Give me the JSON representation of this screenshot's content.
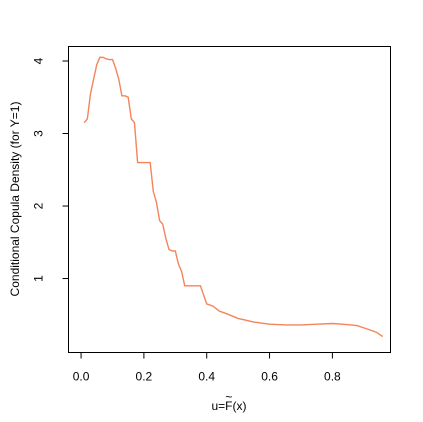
{
  "chart_data": {
    "type": "line",
    "title": "",
    "xlabel": "u=F(x)",
    "xlabel_prefix": "u=",
    "xlabel_symbol": "F",
    "xlabel_accent": "~",
    "xlabel_suffix": "(x)",
    "ylabel": "Conditional Copula Density (for Y=1)",
    "xlim": [
      -0.04,
      0.985
    ],
    "ylim": [
      -0.02,
      4.2
    ],
    "xticks": [
      0.0,
      0.2,
      0.4,
      0.6,
      0.8
    ],
    "xtick_labels": [
      "0.0",
      "0.2",
      "0.4",
      "0.6",
      "0.8"
    ],
    "yticks": [
      1,
      2,
      3,
      4
    ],
    "ytick_labels": [
      "1",
      "2",
      "3",
      "4"
    ],
    "grid": false,
    "legend": "none",
    "line_color": "#f4845a",
    "series": [
      {
        "x": [
          0.01,
          0.02,
          0.03,
          0.04,
          0.05,
          0.06,
          0.07,
          0.08,
          0.09,
          0.1,
          0.11,
          0.12,
          0.13,
          0.14,
          0.15,
          0.16,
          0.17,
          0.18,
          0.19,
          0.2,
          0.21,
          0.22,
          0.23,
          0.24,
          0.25,
          0.26,
          0.27,
          0.28,
          0.29,
          0.3,
          0.31,
          0.32,
          0.33,
          0.34,
          0.36,
          0.38,
          0.4,
          0.42,
          0.44,
          0.46,
          0.5,
          0.55,
          0.6,
          0.65,
          0.7,
          0.75,
          0.8,
          0.83,
          0.86,
          0.88,
          0.9,
          0.92,
          0.94,
          0.96
        ],
        "y": [
          3.15,
          3.2,
          3.55,
          3.75,
          3.95,
          4.05,
          4.05,
          4.03,
          4.02,
          4.02,
          3.9,
          3.75,
          3.52,
          3.52,
          3.5,
          3.2,
          3.15,
          2.6,
          2.6,
          2.6,
          2.6,
          2.6,
          2.2,
          2.05,
          1.8,
          1.75,
          1.55,
          1.4,
          1.38,
          1.38,
          1.2,
          1.1,
          0.9,
          0.9,
          0.9,
          0.9,
          0.65,
          0.62,
          0.55,
          0.52,
          0.45,
          0.4,
          0.37,
          0.36,
          0.36,
          0.37,
          0.38,
          0.37,
          0.36,
          0.35,
          0.32,
          0.29,
          0.26,
          0.2
        ]
      }
    ]
  }
}
